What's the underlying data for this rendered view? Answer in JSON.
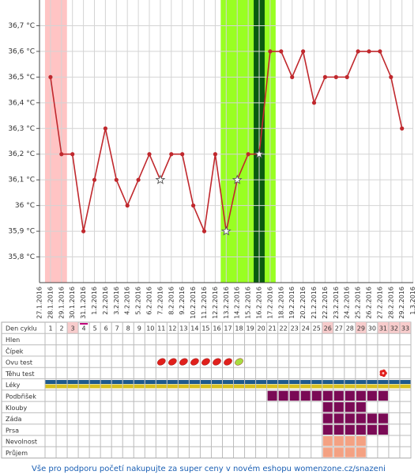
{
  "chart_data": {
    "type": "line",
    "categories": [
      "27.1.2016",
      "28.1.2016",
      "29.1.2016",
      "30.1.2016",
      "31.1.2016",
      "1.2.2016",
      "2.2.2016",
      "3.2.2016",
      "4.2.2016",
      "5.2.2016",
      "6.2.2016",
      "7.2.2016",
      "8.2.2016",
      "9.2.2016",
      "10.2.2016",
      "11.2.2016",
      "12.2.2016",
      "13.2.2016",
      "14.2.2016",
      "15.2.2016",
      "16.2.2016",
      "17.2.2016",
      "18.2.2016",
      "19.2.2016",
      "20.2.2016",
      "21.2.2016",
      "22.2.2016",
      "23.2.2016",
      "24.2.2016",
      "25.2.2016",
      "26.2.2016",
      "27.2.2016",
      "28.2.2016",
      "29.2.2016",
      "1.3.2016"
    ],
    "values": [
      null,
      36.5,
      36.2,
      36.2,
      35.9,
      36.1,
      36.3,
      36.1,
      36.0,
      36.1,
      36.2,
      36.1,
      36.2,
      36.2,
      36.0,
      35.9,
      36.2,
      35.9,
      36.1,
      36.2,
      36.2,
      36.6,
      36.6,
      36.5,
      36.6,
      36.4,
      36.5,
      36.5,
      36.5,
      36.6,
      36.6,
      36.6,
      36.5,
      36.3,
      null
    ],
    "markers": [
      null,
      "dot",
      "dot",
      "dot",
      "dot",
      "dot",
      "dot",
      "dot",
      "dot",
      "dot",
      "dot",
      "star",
      "dot",
      "dot",
      "dot",
      "dot",
      "dot",
      "star",
      "star",
      "dot",
      "star",
      "dot",
      "dot",
      "dot",
      "dot",
      "dot",
      "dot",
      "dot",
      "dot",
      "dot",
      "dot",
      "dot",
      "dot",
      "dot",
      null
    ],
    "color": "#c0282d",
    "bands": [
      {
        "from": 1,
        "to": 2,
        "color": "#ffc4c4"
      },
      {
        "from": 17,
        "to": 21,
        "color": "#99ff22"
      },
      {
        "from": 20,
        "to": 20,
        "color": "#0a5a10"
      }
    ],
    "ylim": [
      35.7,
      36.8
    ],
    "yticks": [
      {
        "value": 35.8,
        "label": "35,8 °C"
      },
      {
        "value": 35.9,
        "label": "35,9 °C"
      },
      {
        "value": 36,
        "label": "36 °C"
      },
      {
        "value": 36.1,
        "label": "36,1 °C"
      },
      {
        "value": 36.2,
        "label": "36,2 °C"
      },
      {
        "value": 36.3,
        "label": "36,3 °C"
      },
      {
        "value": 36.4,
        "label": "36,4 °C"
      },
      {
        "value": 36.5,
        "label": "36,5 °C"
      },
      {
        "value": 36.6,
        "label": "36,6 °C"
      },
      {
        "value": 36.7,
        "label": "36,7 °C"
      }
    ],
    "grid": true
  },
  "cycle_table": {
    "header": "Den cyklu",
    "days": [
      1,
      2,
      3,
      4,
      5,
      6,
      7,
      8,
      9,
      10,
      11,
      12,
      13,
      14,
      15,
      16,
      17,
      18,
      19,
      20,
      21,
      22,
      23,
      24,
      25,
      26,
      27,
      28,
      29,
      30,
      31,
      32,
      33
    ],
    "highlight_days": [
      3,
      26,
      29,
      31,
      32,
      33
    ],
    "underline_days": [
      4
    ],
    "rows": [
      {
        "label": "Hlen",
        "marks": []
      },
      {
        "label": "Čípek",
        "marks": []
      },
      {
        "label": "Ovu test",
        "marks": [
          {
            "symbol": "drop-red",
            "days": [
              11,
              12,
              13,
              14,
              15,
              16,
              17
            ]
          },
          {
            "symbol": "drop-green",
            "days": [
              18
            ]
          }
        ]
      },
      {
        "label": "Těhu test",
        "marks": [
          {
            "symbol": "flower",
            "days": [
              31
            ]
          }
        ]
      },
      {
        "label": "Léky",
        "marks": [
          {
            "symbol": "stripe",
            "days": [
              1,
              2,
              3,
              4,
              5,
              6,
              7,
              8,
              9,
              10,
              11,
              12,
              13,
              14,
              15,
              16,
              17,
              18,
              19,
              20,
              21,
              22,
              23,
              24,
              25,
              26,
              27,
              28,
              29,
              30,
              31,
              32,
              33
            ]
          }
        ]
      },
      {
        "label": "Podbřišek",
        "marks": [
          {
            "symbol": "purple",
            "days": [
              21,
              22,
              23,
              24,
              25,
              26,
              27,
              28,
              29,
              30,
              31
            ]
          }
        ]
      },
      {
        "label": "Klouby",
        "marks": [
          {
            "symbol": "purple",
            "days": [
              26,
              27,
              28,
              29
            ]
          }
        ]
      },
      {
        "label": "Záda",
        "marks": [
          {
            "symbol": "purple",
            "days": [
              26,
              27,
              28,
              29,
              30,
              31
            ]
          }
        ]
      },
      {
        "label": "Prsa",
        "marks": [
          {
            "symbol": "purple",
            "days": [
              26,
              27,
              28,
              29,
              30,
              31
            ]
          }
        ]
      },
      {
        "label": "Nevolnost",
        "marks": [
          {
            "symbol": "salmon",
            "days": [
              26,
              27,
              28,
              29
            ]
          }
        ]
      },
      {
        "label": "Průjem",
        "marks": [
          {
            "symbol": "salmon",
            "days": [
              26,
              27,
              28,
              29
            ]
          }
        ]
      }
    ]
  },
  "footer": "Vše pro podporu početí nakupujte za super ceny v novém eshopu womenzone.cz/snazeni"
}
